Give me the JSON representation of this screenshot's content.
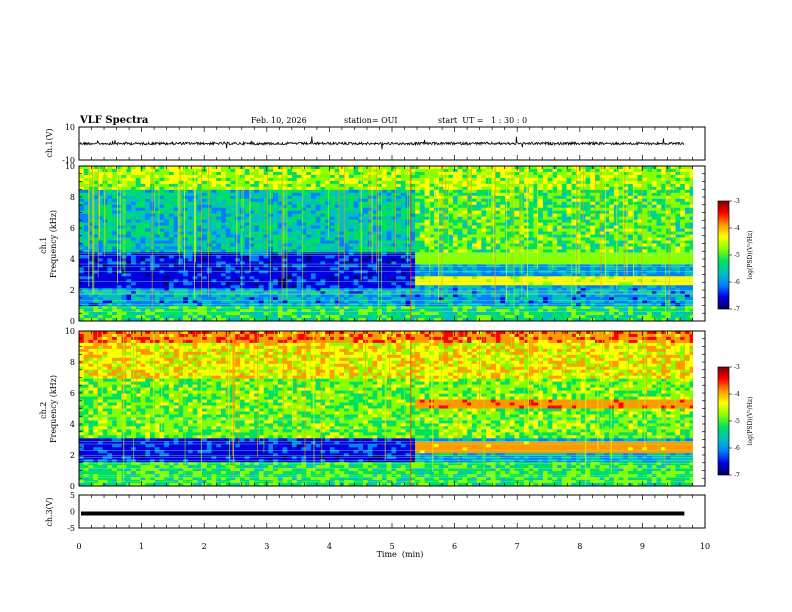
{
  "header": {
    "title": "VLF Spectra",
    "date": "Feb. 10, 2026",
    "station": "station= OUI",
    "start": "start  UT =   1 : 30 : 0"
  },
  "chart_data": [
    {
      "type": "line",
      "id": "ch1-waveform",
      "ylabel": "ch.1(V)",
      "ylim": [
        -10,
        10
      ],
      "yticks": [
        "10",
        "-10"
      ],
      "xlim": [
        0,
        10
      ],
      "description_values": {
        "mean": 0,
        "amplitude": 0.8
      }
    },
    {
      "type": "heatmap",
      "id": "ch1-spectrogram",
      "ylabel": "ch.1\nFrequency (kHz)",
      "ylabel_lines": [
        "ch.1",
        "Frequency (kHz)"
      ],
      "yticks": [
        "0",
        "2",
        "4",
        "6",
        "8",
        "10"
      ],
      "ylim": [
        0,
        10
      ],
      "xlim": [
        0,
        10
      ],
      "change_time_min": 5.3,
      "colorbar": {
        "label": "log(PSD)(V²/Hz)",
        "ticks": [
          "-3",
          "-4",
          "-5",
          "-6",
          "-7"
        ],
        "range": [
          -7,
          -3
        ],
        "stops": [
          "#7a0000",
          "#ff0000",
          "#ff9900",
          "#ffff00",
          "#88ff00",
          "#00e060",
          "#00c0c0",
          "#0080ff",
          "#0000e0",
          "#000060"
        ]
      }
    },
    {
      "type": "heatmap",
      "id": "ch2-spectrogram",
      "ylabel": "ch.2\nFrequency (kHz)",
      "ylabel_lines": [
        "ch.2",
        "Frequency (kHz)"
      ],
      "yticks": [
        "0",
        "2",
        "4",
        "6",
        "8",
        "10"
      ],
      "ylim": [
        0,
        10
      ],
      "xlim": [
        0,
        10
      ],
      "change_time_min": 5.3,
      "colorbar": {
        "label": "log(PSD)(V²/Hz)",
        "ticks": [
          "-3",
          "-4",
          "-5",
          "-6",
          "-7"
        ],
        "range": [
          -7,
          -3
        ],
        "stops": [
          "#7a0000",
          "#ff0000",
          "#ff9900",
          "#ffff00",
          "#88ff00",
          "#00e060",
          "#00c0c0",
          "#0080ff",
          "#0000e0",
          "#000060"
        ]
      }
    },
    {
      "type": "line",
      "id": "ch3-waveform",
      "ylabel": "ch.3(V)",
      "ylim": [
        -5,
        5
      ],
      "yticks": [
        "5",
        "0",
        "-5"
      ],
      "xlim": [
        0,
        10
      ],
      "description_values": {
        "mean": -0.6,
        "amplitude": 0.1
      }
    }
  ],
  "xaxis": {
    "label": "Time  (min)",
    "ticks": [
      "0",
      "1",
      "2",
      "3",
      "4",
      "5",
      "6",
      "7",
      "8",
      "9",
      "10"
    ],
    "range": [
      0,
      10
    ],
    "data_end_min": 9.83
  }
}
